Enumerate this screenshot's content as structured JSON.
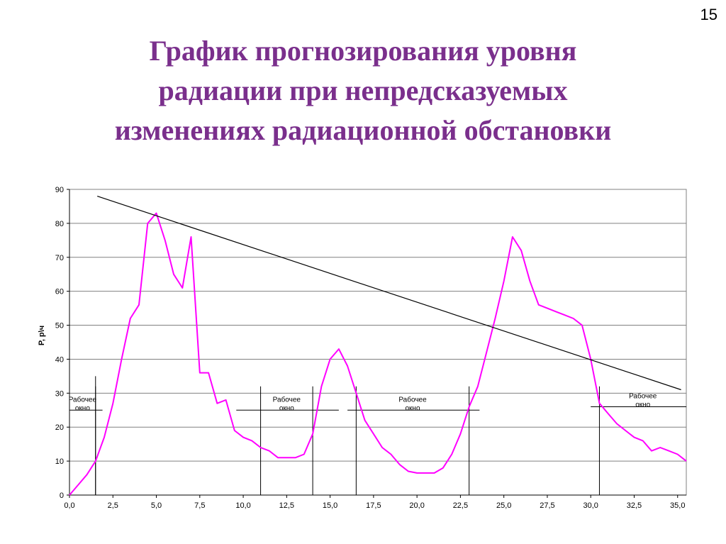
{
  "slide": {
    "number": "15",
    "title_lines": [
      "График прогнозирования уровня",
      "радиации при непредсказуемых",
      "изменениях радиационной обстановки"
    ]
  },
  "chart_data": {
    "type": "line",
    "title": "",
    "xlabel": "",
    "ylabel": "P, р\\ч",
    "xlim": [
      0,
      35.5
    ],
    "ylim": [
      0,
      90
    ],
    "x_tick_labels": [
      "0,0",
      "2,5",
      "5,0",
      "7,5",
      "10,0",
      "12,5",
      "15,0",
      "17,5",
      "20,0",
      "22,5",
      "25,0",
      "27,5",
      "30,0",
      "32,5",
      "35,0"
    ],
    "y_tick_labels": [
      "0",
      "10",
      "20",
      "30",
      "40",
      "50",
      "60",
      "70",
      "80",
      "90"
    ],
    "grid": "horizontal",
    "series": [
      {
        "color": "#ff00ff",
        "points": [
          [
            0,
            0
          ],
          [
            0.5,
            3
          ],
          [
            1,
            6
          ],
          [
            1.5,
            10
          ],
          [
            2,
            17
          ],
          [
            2.5,
            27
          ],
          [
            3,
            40
          ],
          [
            3.5,
            52
          ],
          [
            4,
            56
          ],
          [
            4.5,
            80
          ],
          [
            5,
            83
          ],
          [
            5.5,
            75
          ],
          [
            6,
            65
          ],
          [
            6.5,
            61
          ],
          [
            7,
            76
          ],
          [
            7.5,
            36
          ],
          [
            8,
            36
          ],
          [
            8.5,
            27
          ],
          [
            9,
            28
          ],
          [
            9.5,
            19
          ],
          [
            10,
            17
          ],
          [
            10.5,
            16
          ],
          [
            11,
            14
          ],
          [
            11.5,
            13
          ],
          [
            12,
            11
          ],
          [
            12.5,
            11
          ],
          [
            13,
            11
          ],
          [
            13.5,
            12
          ],
          [
            14,
            18
          ],
          [
            14.5,
            32
          ],
          [
            15,
            40
          ],
          [
            15.5,
            43
          ],
          [
            16,
            38
          ],
          [
            16.5,
            30
          ],
          [
            17,
            22
          ],
          [
            17.5,
            18
          ],
          [
            18,
            14
          ],
          [
            18.5,
            12
          ],
          [
            19,
            9
          ],
          [
            19.5,
            7
          ],
          [
            20,
            6.5
          ],
          [
            20.5,
            6.5
          ],
          [
            21,
            6.5
          ],
          [
            21.5,
            8
          ],
          [
            22,
            12
          ],
          [
            22.5,
            18
          ],
          [
            23,
            26
          ],
          [
            23.5,
            32
          ],
          [
            24,
            42
          ],
          [
            24.5,
            52
          ],
          [
            25,
            63
          ],
          [
            25.5,
            76
          ],
          [
            26,
            72
          ],
          [
            26.5,
            63
          ],
          [
            27,
            56
          ],
          [
            27.5,
            55
          ],
          [
            28,
            54
          ],
          [
            28.5,
            53
          ],
          [
            29,
            52
          ],
          [
            29.5,
            50
          ],
          [
            30,
            40
          ],
          [
            30.5,
            27
          ],
          [
            31,
            24
          ],
          [
            31.5,
            21
          ],
          [
            32,
            19
          ],
          [
            32.5,
            17
          ],
          [
            33,
            16
          ],
          [
            33.5,
            13
          ],
          [
            34,
            14
          ],
          [
            34.5,
            13
          ],
          [
            35,
            12
          ],
          [
            35.5,
            10
          ]
        ]
      },
      {
        "color": "#000000",
        "points": [
          [
            1.6,
            88
          ],
          [
            35.2,
            31
          ]
        ]
      }
    ],
    "working_windows": [
      {
        "label_line1": "Рабочее",
        "label_line2": "окно",
        "x_start": 0,
        "x_end": 1.5,
        "hline_x": [
          0,
          1.9
        ],
        "hline_y": 25
      },
      {
        "label_line1": "Рабочее",
        "label_line2": "окно",
        "x_start": 11,
        "x_end": 14,
        "hline_x": [
          9.6,
          15.5
        ],
        "hline_y": 25
      },
      {
        "label_line1": "Рабочее",
        "label_line2": "окно",
        "x_start": 16.5,
        "x_end": 23,
        "hline_x": [
          16,
          23.6
        ],
        "hline_y": 25
      },
      {
        "label_line1": "Рабочее",
        "label_line2": "окно",
        "x_start": 30.5,
        "x_end": null,
        "hline_x": [
          30,
          35.5
        ],
        "hline_y": 26
      }
    ]
  }
}
